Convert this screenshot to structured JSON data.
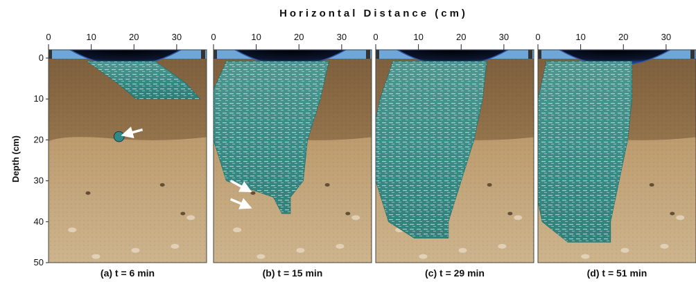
{
  "figure": {
    "top_axis_title": "Horizontal Distance (cm)",
    "left_axis_title": "Depth (cm)",
    "x_ticks": [
      0,
      10,
      20,
      30
    ],
    "y_ticks": [
      0,
      10,
      20,
      30,
      40,
      50
    ],
    "x_range_cm": [
      0,
      37
    ],
    "y_range_cm": [
      0,
      50
    ],
    "colors": {
      "upper_soil": "#8a6a45",
      "lower_soil": "#b8915e",
      "dye": "#2f8a86",
      "dye_highlight": "#cfe3e0",
      "sky": "#6ea6d8",
      "ring": "#0b1a3a"
    },
    "panels": [
      {
        "caption": "(a) t = 6 min",
        "plume_profile": [
          [
            0,
            0,
            8
          ],
          [
            6,
            7,
            8
          ],
          [
            10,
            11,
            7.5
          ]
        ],
        "blobs": [
          [
            16.5,
            19.2,
            1.2
          ]
        ],
        "arrows": [
          [
            22,
            17.5,
            17.5,
            18.8
          ]
        ]
      },
      {
        "caption": "(b) t = 15 min",
        "plume_profile": [
          [
            0,
            -2,
            12
          ],
          [
            10,
            -5,
            13
          ],
          [
            20,
            -6,
            11
          ],
          [
            30,
            -5,
            9
          ],
          [
            34,
            -1,
            2
          ],
          [
            38,
            0,
            1
          ]
        ],
        "blobs": [],
        "arrows": [
          [
            4,
            30,
            8.5,
            32.5
          ],
          [
            4,
            34.5,
            8.5,
            36.5
          ]
        ]
      },
      {
        "caption": "(c) t = 29 min",
        "plume_profile": [
          [
            0,
            -2,
            11
          ],
          [
            10,
            -4,
            12
          ],
          [
            20,
            -6,
            12
          ],
          [
            30,
            -7,
            10
          ],
          [
            40,
            -7,
            7
          ],
          [
            44,
            -4,
            4
          ]
        ],
        "blobs": [],
        "arrows": []
      },
      {
        "caption": "(d) t = 51 min",
        "plume_profile": [
          [
            0,
            -5,
            10
          ],
          [
            10,
            -6,
            11
          ],
          [
            20,
            -7,
            11
          ],
          [
            30,
            -8,
            10
          ],
          [
            40,
            -8,
            8
          ],
          [
            45,
            -5,
            5
          ]
        ],
        "blobs": [],
        "arrows": []
      }
    ]
  }
}
